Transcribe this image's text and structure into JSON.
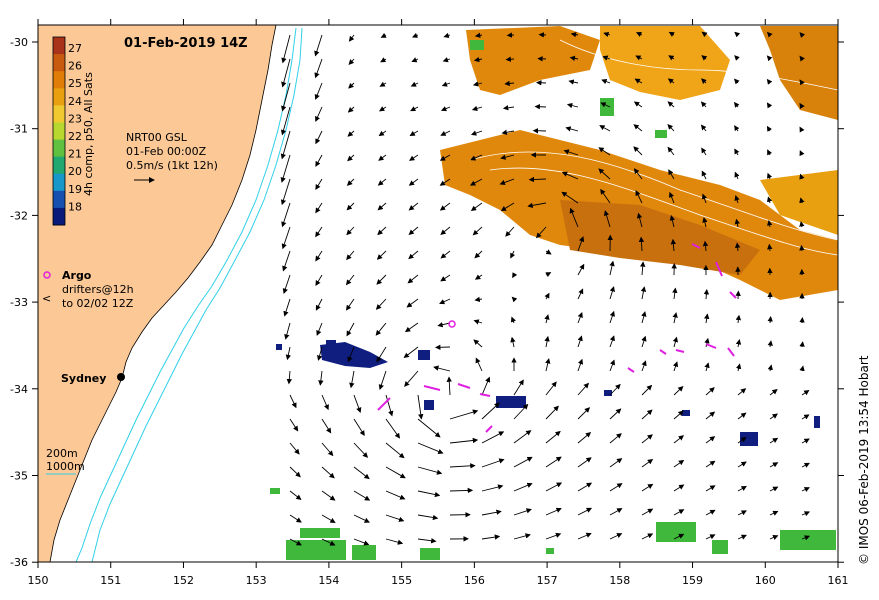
{
  "title": "01-Feb-2019 14Z",
  "colorbar": {
    "ticks": [
      "27",
      "26",
      "25",
      "24",
      "23",
      "22",
      "21",
      "20",
      "19",
      "18"
    ],
    "label": "4h comp, p50, All Sats",
    "colors": [
      "#a8321a",
      "#c85a10",
      "#e07d08",
      "#e8a010",
      "#f0c830",
      "#b8d830",
      "#60c040",
      "#20a870",
      "#1898c8",
      "#1850b0",
      "#0a1a78"
    ]
  },
  "current_info": {
    "line1": "NRT00 GSL",
    "line2": "01-Feb 00:00Z",
    "line3": "0.5m/s (1kt 12h)"
  },
  "legend": {
    "argo_label": "Argo",
    "drifter_line1": "drifters@12h",
    "drifter_line2": "to 02/02 12Z",
    "drifter_symbol": "<",
    "depth1": "200m",
    "depth2": "1000m"
  },
  "city": "Sydney",
  "credit": "© IMOS 06-Feb-2019 13:54 Hobart",
  "x_ticks": [
    "150",
    "151",
    "152",
    "153",
    "154",
    "155",
    "156",
    "157",
    "158",
    "159",
    "160",
    "161"
  ],
  "y_ticks": [
    "-30",
    "-31",
    "-32",
    "-33",
    "-34",
    "-35",
    "-36"
  ],
  "colors": {
    "land": "#fbc896",
    "warm_sst": "#e0880c",
    "cool_sst": "#101e80",
    "mid_sst": "#40b83c",
    "isobath": "#30d0e8",
    "drifter": "#e020e0",
    "arrow": "#000000"
  }
}
